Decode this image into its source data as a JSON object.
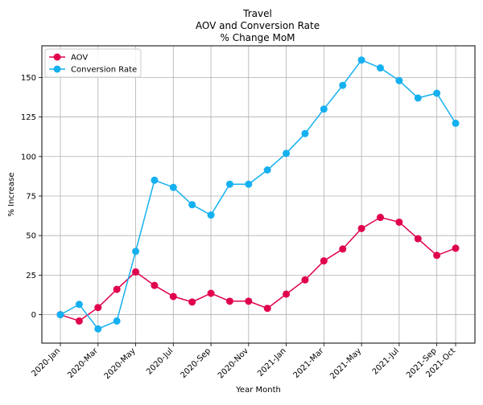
{
  "chart_data": {
    "type": "line",
    "title_lines": [
      "Travel",
      "AOV and Conversion Rate",
      "% Change MoM"
    ],
    "xlabel": "Year Month",
    "ylabel": "% Increase",
    "x": [
      "2020-Jan",
      "2020-Feb",
      "2020-Mar",
      "2020-Apr",
      "2020-May",
      "2020-Jun",
      "2020-Jul",
      "2020-Aug",
      "2020-Sep",
      "2020-Oct",
      "2020-Nov",
      "2020-Dec",
      "2021-Jan",
      "2021-Feb",
      "2021-Mar",
      "2021-Apr",
      "2021-May",
      "2021-Jun",
      "2021-Jul",
      "2021-Aug",
      "2021-Sep",
      "2021-Oct"
    ],
    "x_tick_labels": [
      {
        "index": 0,
        "label": "2020-Jan"
      },
      {
        "index": 2,
        "label": "2020-Mar"
      },
      {
        "index": 4,
        "label": "2020-May"
      },
      {
        "index": 6,
        "label": "2020-Jul"
      },
      {
        "index": 8,
        "label": "2020-Sep"
      },
      {
        "index": 10,
        "label": "2020-Nov"
      },
      {
        "index": 12,
        "label": "2021-Jan"
      },
      {
        "index": 14,
        "label": "2021-Mar"
      },
      {
        "index": 16,
        "label": "2021-May"
      },
      {
        "index": 18,
        "label": "2021-Jul"
      },
      {
        "index": 20,
        "label": "2021-Sep"
      },
      {
        "index": 21,
        "label": "2021-Oct"
      }
    ],
    "yticks": [
      0,
      25,
      50,
      75,
      100,
      125,
      150
    ],
    "ylim": [
      -18,
      170
    ],
    "grid": true,
    "legend_position": "top-left",
    "series": [
      {
        "name": "AOV",
        "color": "#e0004d",
        "values": [
          0,
          -4,
          4.5,
          16,
          27,
          18.5,
          11.5,
          8,
          13.5,
          8.5,
          8.5,
          4,
          13,
          22,
          34,
          41.5,
          54.5,
          61.5,
          58.5,
          48,
          37.5,
          42
        ]
      },
      {
        "name": "Conversion Rate",
        "color": "#15b0f0",
        "values": [
          0,
          6.5,
          -9,
          -4,
          40,
          85,
          80.5,
          69.5,
          63,
          82.5,
          82.5,
          91.5,
          102,
          114.5,
          130,
          145,
          161,
          156,
          148,
          137,
          140,
          121
        ]
      }
    ]
  }
}
